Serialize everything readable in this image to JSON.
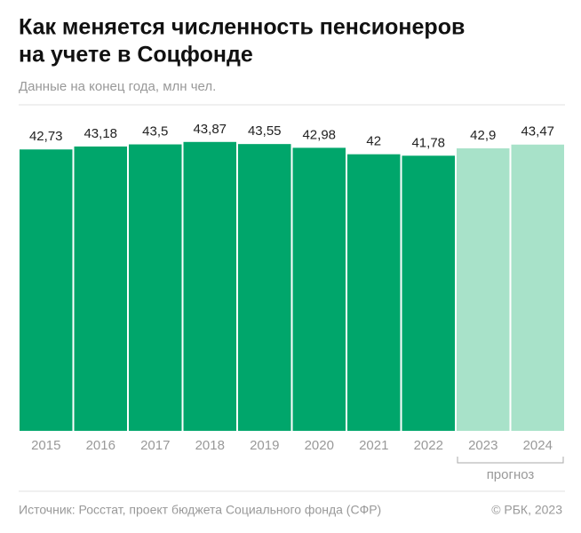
{
  "chart_data": {
    "type": "bar",
    "title": [
      "Как меняется численность пенсионеров",
      "на учете в Соцфонде"
    ],
    "subtitle": "Данные на конец года, млн чел.",
    "categories": [
      "2015",
      "2016",
      "2017",
      "2018",
      "2019",
      "2020",
      "2021",
      "2022",
      "2023",
      "2024"
    ],
    "values": [
      42.73,
      43.18,
      43.5,
      43.87,
      43.55,
      42.98,
      42,
      41.78,
      42.9,
      43.47
    ],
    "value_labels": [
      "42,73",
      "43,18",
      "43,5",
      "43,87",
      "43,55",
      "42,98",
      "42",
      "41,78",
      "42,9",
      "43,47"
    ],
    "colors": [
      "#00a66b",
      "#00a66b",
      "#00a66b",
      "#00a66b",
      "#00a66b",
      "#00a66b",
      "#00a66b",
      "#00a66b",
      "#a8e2c9",
      "#a8e2c9"
    ],
    "ylim": [
      0,
      46
    ],
    "annotation": "прогноз",
    "source": "Источник: Росстат, проект бюджета Социального фонда (СФР)",
    "credit": "© РБК, 2023"
  }
}
